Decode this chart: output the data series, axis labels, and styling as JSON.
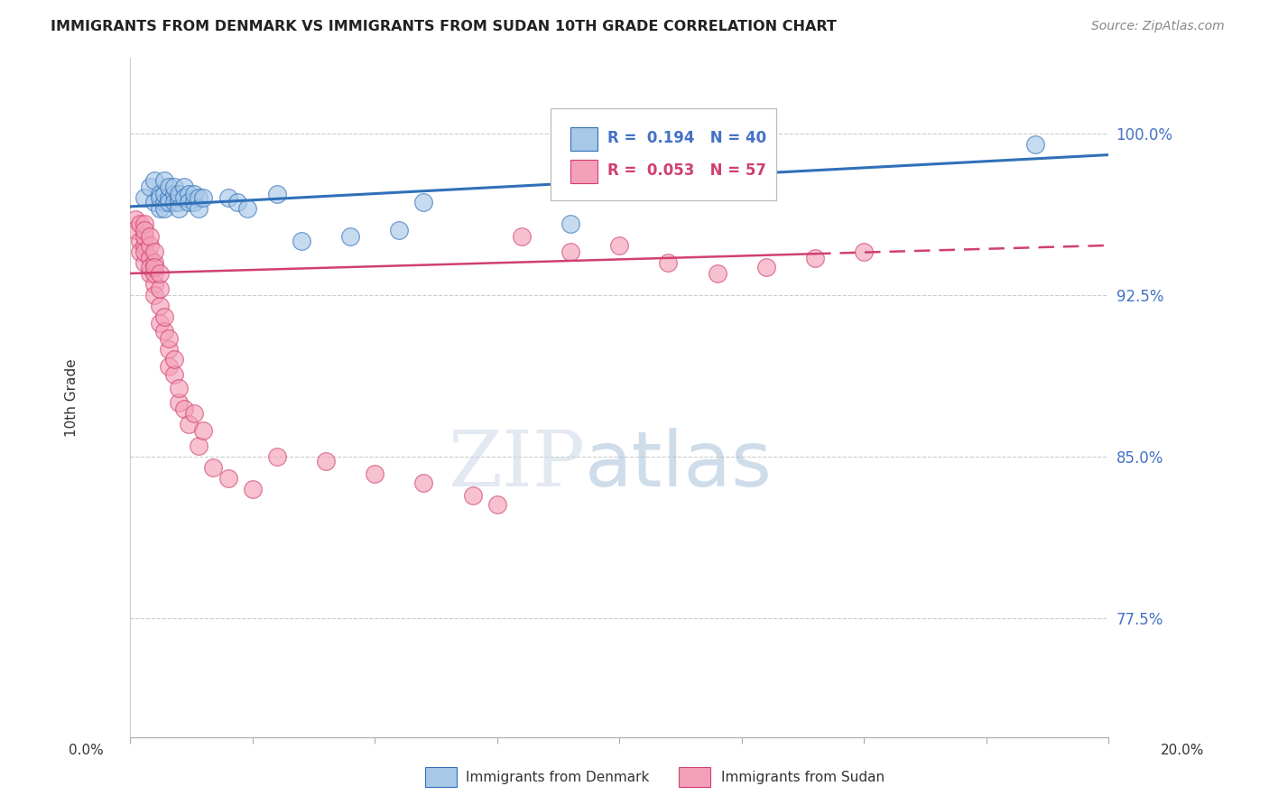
{
  "title": "IMMIGRANTS FROM DENMARK VS IMMIGRANTS FROM SUDAN 10TH GRADE CORRELATION CHART",
  "source": "Source: ZipAtlas.com",
  "ylabel": "10th Grade",
  "ytick_labels": [
    "77.5%",
    "85.0%",
    "92.5%",
    "100.0%"
  ],
  "ytick_values": [
    0.775,
    0.85,
    0.925,
    1.0
  ],
  "xmin": 0.0,
  "xmax": 0.2,
  "ymin": 0.72,
  "ymax": 1.035,
  "denmark_R": 0.194,
  "denmark_N": 40,
  "sudan_R": 0.053,
  "sudan_N": 57,
  "denmark_color": "#a8c8e8",
  "sudan_color": "#f4a0b8",
  "denmark_line_color": "#3070b8",
  "sudan_line_color": "#d04070",
  "denmark_x": [
    0.003,
    0.004,
    0.005,
    0.005,
    0.006,
    0.006,
    0.006,
    0.007,
    0.007,
    0.007,
    0.007,
    0.008,
    0.008,
    0.008,
    0.009,
    0.009,
    0.009,
    0.01,
    0.01,
    0.01,
    0.01,
    0.011,
    0.011,
    0.012,
    0.012,
    0.013,
    0.013,
    0.014,
    0.014,
    0.015,
    0.02,
    0.022,
    0.024,
    0.03,
    0.035,
    0.045,
    0.055,
    0.06,
    0.09,
    0.185
  ],
  "denmark_y": [
    0.97,
    0.975,
    0.978,
    0.968,
    0.972,
    0.965,
    0.97,
    0.968,
    0.972,
    0.978,
    0.965,
    0.97,
    0.975,
    0.968,
    0.972,
    0.968,
    0.975,
    0.97,
    0.968,
    0.972,
    0.965,
    0.975,
    0.97,
    0.972,
    0.968,
    0.968,
    0.972,
    0.97,
    0.965,
    0.97,
    0.97,
    0.968,
    0.965,
    0.972,
    0.95,
    0.952,
    0.955,
    0.968,
    0.958,
    0.995
  ],
  "sudan_x": [
    0.001,
    0.001,
    0.002,
    0.002,
    0.002,
    0.003,
    0.003,
    0.003,
    0.003,
    0.003,
    0.003,
    0.004,
    0.004,
    0.004,
    0.004,
    0.004,
    0.005,
    0.005,
    0.005,
    0.005,
    0.005,
    0.005,
    0.006,
    0.006,
    0.006,
    0.006,
    0.007,
    0.007,
    0.008,
    0.008,
    0.008,
    0.009,
    0.009,
    0.01,
    0.01,
    0.011,
    0.012,
    0.013,
    0.014,
    0.015,
    0.017,
    0.02,
    0.025,
    0.03,
    0.04,
    0.05,
    0.06,
    0.07,
    0.075,
    0.08,
    0.09,
    0.1,
    0.11,
    0.12,
    0.13,
    0.14,
    0.15
  ],
  "sudan_y": [
    0.96,
    0.955,
    0.95,
    0.945,
    0.958,
    0.94,
    0.948,
    0.952,
    0.945,
    0.958,
    0.955,
    0.935,
    0.942,
    0.948,
    0.952,
    0.938,
    0.93,
    0.935,
    0.94,
    0.945,
    0.925,
    0.938,
    0.92,
    0.928,
    0.935,
    0.912,
    0.908,
    0.915,
    0.9,
    0.892,
    0.905,
    0.888,
    0.895,
    0.875,
    0.882,
    0.872,
    0.865,
    0.87,
    0.855,
    0.862,
    0.845,
    0.84,
    0.835,
    0.85,
    0.848,
    0.842,
    0.838,
    0.832,
    0.828,
    0.952,
    0.945,
    0.948,
    0.94,
    0.935,
    0.938,
    0.942,
    0.945
  ],
  "watermark_zip_color": "#ccd8e8",
  "watermark_atlas_color": "#a8c0d8"
}
